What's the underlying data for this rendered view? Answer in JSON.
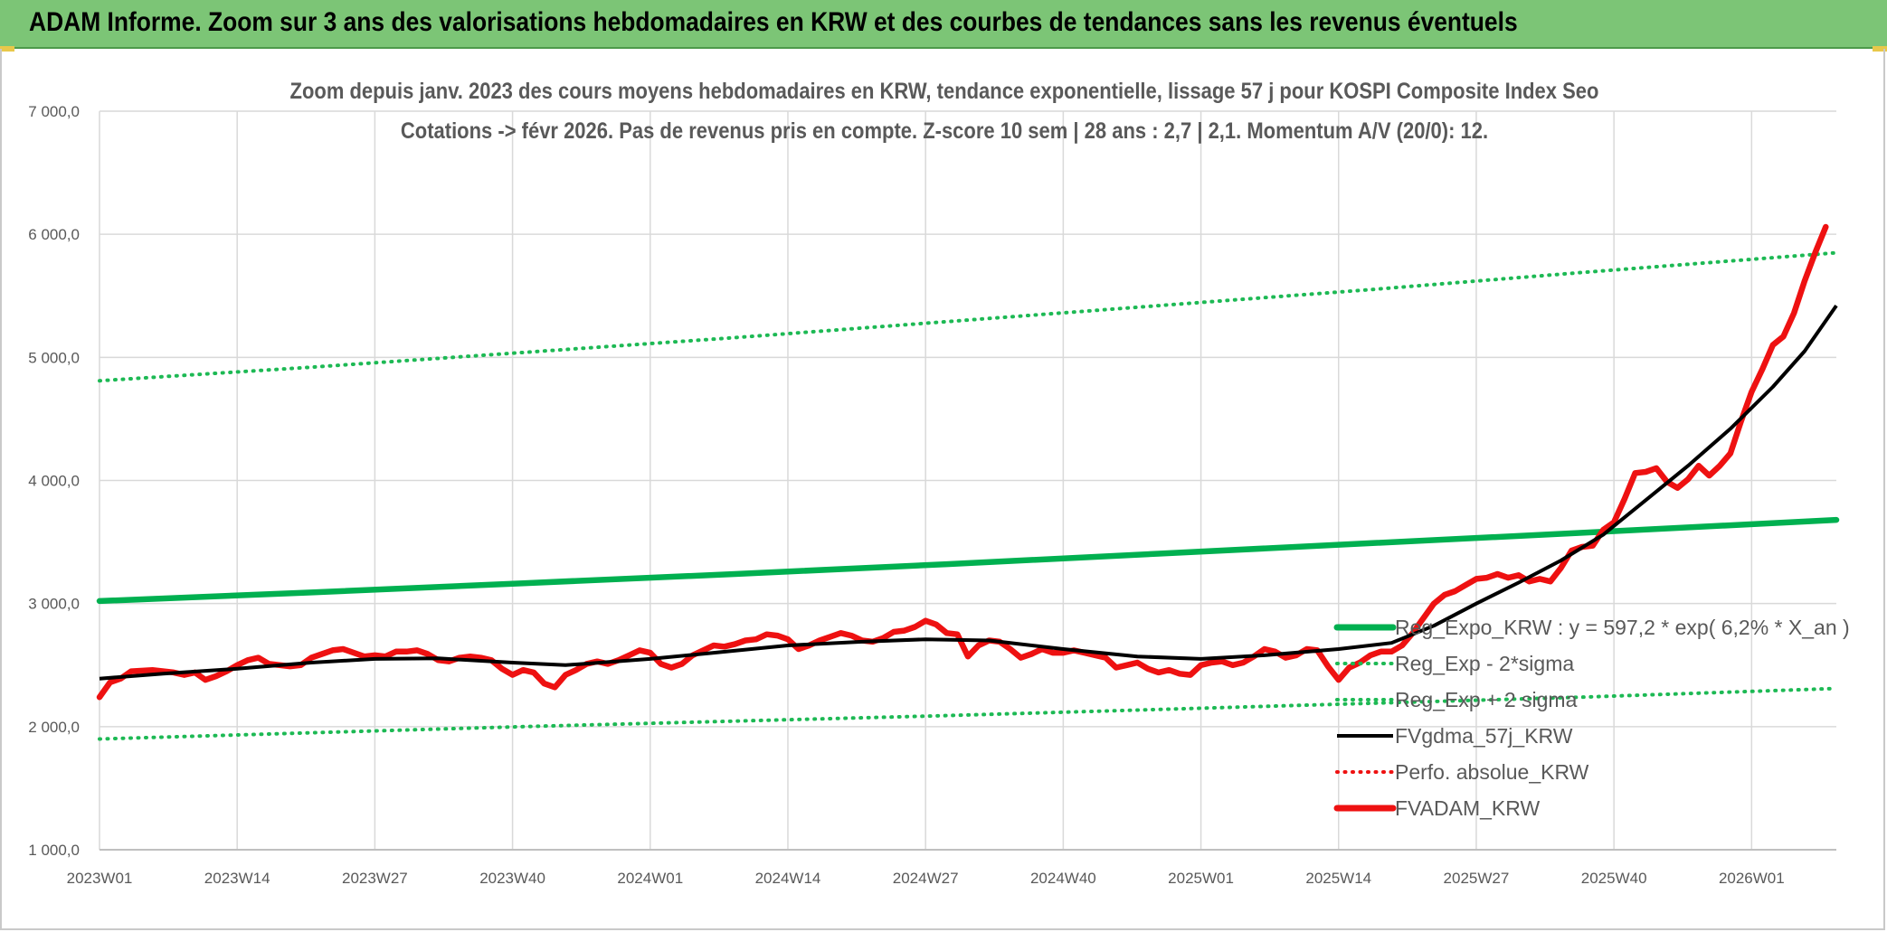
{
  "header": {
    "title": "ADAM Informe. Zoom sur 3 ans des valorisations hebdomadaires en KRW et des courbes de tendances sans les revenus éventuels"
  },
  "colors": {
    "header_bg": "#7cc576",
    "trend_green": "#00b050",
    "dotted_green": "#1db954",
    "smoothed_black": "#000000",
    "price_red": "#ee1111",
    "grid": "#d9d9d9",
    "text": "#595959"
  },
  "chart_data": {
    "type": "line",
    "title_lines": [
      "Zoom depuis janv. 2023 des cours moyens hebdomadaires en KRW, tendance exponentielle, lissage 57 j pour KOSPI Composite Index Seo",
      "Cotations -> févr 2026. Pas de revenus pris en compte. Z-score 10 sem | 28 ans : 2,7 | 2,1. Momentum A/V (20/0): 12."
    ],
    "ylim": [
      1000,
      7000
    ],
    "y_ticks": [
      1000,
      2000,
      3000,
      4000,
      5000,
      6000,
      7000
    ],
    "y_tick_labels": [
      "1 000,0",
      "2 000,0",
      "3 000,0",
      "4 000,0",
      "5 000,0",
      "6 000,0",
      "7 000,0"
    ],
    "x_range": [
      0,
      164
    ],
    "x_tick_positions": [
      0,
      13,
      26,
      39,
      52,
      65,
      78,
      91,
      104,
      117,
      130,
      143,
      156
    ],
    "x_tick_labels": [
      "2023W01",
      "2023W14",
      "2023W27",
      "2023W40",
      "2024W01",
      "2024W14",
      "2024W27",
      "2024W40",
      "2025W01",
      "2025W14",
      "2025W27",
      "2025W40",
      "2026W01"
    ],
    "grid": true,
    "legend_position": "bottom-right",
    "series": [
      {
        "name": "Reg_Expo_KRW : y = 597,2 * exp( 6,2% *  X_an )",
        "style": "solid-thick",
        "color": "#00b050",
        "points": [
          [
            0,
            3020
          ],
          [
            20,
            3090
          ],
          [
            40,
            3165
          ],
          [
            60,
            3240
          ],
          [
            80,
            3320
          ],
          [
            100,
            3405
          ],
          [
            120,
            3490
          ],
          [
            140,
            3575
          ],
          [
            164,
            3680
          ]
        ]
      },
      {
        "name": "Reg_Exp - 2*sigma",
        "style": "dotted",
        "color": "#1db954",
        "points": [
          [
            0,
            1900
          ],
          [
            20,
            1950
          ],
          [
            40,
            2000
          ],
          [
            60,
            2045
          ],
          [
            80,
            2090
          ],
          [
            100,
            2140
          ],
          [
            120,
            2190
          ],
          [
            140,
            2240
          ],
          [
            164,
            2310
          ]
        ]
      },
      {
        "name": "Reg_Exp + 2 sigma",
        "style": "dotted",
        "color": "#1db954",
        "points": [
          [
            0,
            4810
          ],
          [
            20,
            4920
          ],
          [
            40,
            5040
          ],
          [
            60,
            5160
          ],
          [
            80,
            5290
          ],
          [
            100,
            5420
          ],
          [
            120,
            5550
          ],
          [
            140,
            5690
          ],
          [
            164,
            5850
          ]
        ]
      },
      {
        "name": "FVgdma_57j_KRW",
        "style": "solid",
        "color": "#000000",
        "points": [
          [
            0,
            2390
          ],
          [
            6,
            2430
          ],
          [
            13,
            2470
          ],
          [
            20,
            2520
          ],
          [
            26,
            2550
          ],
          [
            32,
            2555
          ],
          [
            39,
            2520
          ],
          [
            44,
            2500
          ],
          [
            52,
            2550
          ],
          [
            58,
            2600
          ],
          [
            65,
            2660
          ],
          [
            72,
            2690
          ],
          [
            78,
            2710
          ],
          [
            84,
            2700
          ],
          [
            91,
            2630
          ],
          [
            98,
            2570
          ],
          [
            104,
            2550
          ],
          [
            110,
            2580
          ],
          [
            117,
            2630
          ],
          [
            122,
            2680
          ],
          [
            126,
            2820
          ],
          [
            130,
            3000
          ],
          [
            134,
            3170
          ],
          [
            138,
            3350
          ],
          [
            142,
            3560
          ],
          [
            146,
            3840
          ],
          [
            150,
            4120
          ],
          [
            154,
            4420
          ],
          [
            158,
            4760
          ],
          [
            161,
            5050
          ],
          [
            164,
            5420
          ]
        ]
      },
      {
        "name": "Perfo. absolue_KRW",
        "style": "dotted",
        "color": "#ee1111",
        "points": []
      },
      {
        "name": "FVADAM_KRW",
        "style": "solid-thick",
        "color": "#ee1111",
        "points": [
          [
            0,
            2240
          ],
          [
            1,
            2360
          ],
          [
            2,
            2390
          ],
          [
            3,
            2450
          ],
          [
            5,
            2460
          ],
          [
            7,
            2440
          ],
          [
            8,
            2420
          ],
          [
            9,
            2440
          ],
          [
            10,
            2380
          ],
          [
            11,
            2410
          ],
          [
            12,
            2450
          ],
          [
            13,
            2500
          ],
          [
            14,
            2540
          ],
          [
            15,
            2560
          ],
          [
            16,
            2510
          ],
          [
            18,
            2490
          ],
          [
            19,
            2500
          ],
          [
            20,
            2560
          ],
          [
            21,
            2590
          ],
          [
            22,
            2620
          ],
          [
            23,
            2630
          ],
          [
            24,
            2600
          ],
          [
            25,
            2570
          ],
          [
            26,
            2580
          ],
          [
            27,
            2570
          ],
          [
            28,
            2610
          ],
          [
            29,
            2610
          ],
          [
            30,
            2620
          ],
          [
            31,
            2590
          ],
          [
            32,
            2540
          ],
          [
            33,
            2530
          ],
          [
            34,
            2560
          ],
          [
            35,
            2570
          ],
          [
            36,
            2560
          ],
          [
            37,
            2540
          ],
          [
            38,
            2470
          ],
          [
            39,
            2420
          ],
          [
            40,
            2460
          ],
          [
            41,
            2440
          ],
          [
            42,
            2350
          ],
          [
            43,
            2320
          ],
          [
            44,
            2420
          ],
          [
            45,
            2460
          ],
          [
            46,
            2510
          ],
          [
            47,
            2530
          ],
          [
            48,
            2510
          ],
          [
            49,
            2540
          ],
          [
            50,
            2580
          ],
          [
            51,
            2620
          ],
          [
            52,
            2600
          ],
          [
            53,
            2510
          ],
          [
            54,
            2480
          ],
          [
            55,
            2510
          ],
          [
            56,
            2580
          ],
          [
            57,
            2620
          ],
          [
            58,
            2660
          ],
          [
            59,
            2650
          ],
          [
            60,
            2670
          ],
          [
            61,
            2700
          ],
          [
            62,
            2710
          ],
          [
            63,
            2750
          ],
          [
            64,
            2740
          ],
          [
            65,
            2710
          ],
          [
            66,
            2630
          ],
          [
            67,
            2660
          ],
          [
            68,
            2700
          ],
          [
            69,
            2730
          ],
          [
            70,
            2760
          ],
          [
            71,
            2740
          ],
          [
            72,
            2700
          ],
          [
            73,
            2690
          ],
          [
            74,
            2720
          ],
          [
            75,
            2770
          ],
          [
            76,
            2780
          ],
          [
            77,
            2810
          ],
          [
            78,
            2860
          ],
          [
            79,
            2830
          ],
          [
            80,
            2760
          ],
          [
            81,
            2750
          ],
          [
            82,
            2570
          ],
          [
            83,
            2660
          ],
          [
            84,
            2700
          ],
          [
            85,
            2690
          ],
          [
            86,
            2630
          ],
          [
            87,
            2560
          ],
          [
            88,
            2590
          ],
          [
            89,
            2630
          ],
          [
            90,
            2600
          ],
          [
            91,
            2600
          ],
          [
            92,
            2620
          ],
          [
            93,
            2600
          ],
          [
            94,
            2580
          ],
          [
            95,
            2560
          ],
          [
            96,
            2480
          ],
          [
            97,
            2500
          ],
          [
            98,
            2520
          ],
          [
            99,
            2470
          ],
          [
            100,
            2440
          ],
          [
            101,
            2460
          ],
          [
            102,
            2430
          ],
          [
            103,
            2420
          ],
          [
            104,
            2500
          ],
          [
            105,
            2520
          ],
          [
            106,
            2530
          ],
          [
            107,
            2500
          ],
          [
            108,
            2520
          ],
          [
            109,
            2570
          ],
          [
            110,
            2630
          ],
          [
            111,
            2610
          ],
          [
            112,
            2560
          ],
          [
            113,
            2580
          ],
          [
            114,
            2630
          ],
          [
            115,
            2620
          ],
          [
            116,
            2490
          ],
          [
            117,
            2380
          ],
          [
            118,
            2480
          ],
          [
            119,
            2520
          ],
          [
            120,
            2580
          ],
          [
            121,
            2610
          ],
          [
            122,
            2610
          ],
          [
            123,
            2660
          ],
          [
            124,
            2760
          ],
          [
            125,
            2880
          ],
          [
            126,
            3000
          ],
          [
            127,
            3070
          ],
          [
            128,
            3100
          ],
          [
            129,
            3150
          ],
          [
            130,
            3200
          ],
          [
            131,
            3210
          ],
          [
            132,
            3240
          ],
          [
            133,
            3210
          ],
          [
            134,
            3230
          ],
          [
            135,
            3180
          ],
          [
            136,
            3200
          ],
          [
            137,
            3180
          ],
          [
            138,
            3290
          ],
          [
            139,
            3430
          ],
          [
            140,
            3460
          ],
          [
            141,
            3470
          ],
          [
            142,
            3600
          ],
          [
            143,
            3660
          ],
          [
            144,
            3850
          ],
          [
            145,
            4060
          ],
          [
            146,
            4070
          ],
          [
            147,
            4100
          ],
          [
            148,
            3990
          ],
          [
            149,
            3940
          ],
          [
            150,
            4010
          ],
          [
            151,
            4120
          ],
          [
            152,
            4040
          ],
          [
            153,
            4120
          ],
          [
            154,
            4220
          ],
          [
            155,
            4480
          ],
          [
            156,
            4720
          ],
          [
            157,
            4900
          ],
          [
            158,
            5100
          ],
          [
            159,
            5170
          ],
          [
            160,
            5360
          ],
          [
            161,
            5620
          ],
          [
            162,
            5850
          ],
          [
            163,
            6060
          ]
        ]
      }
    ]
  }
}
